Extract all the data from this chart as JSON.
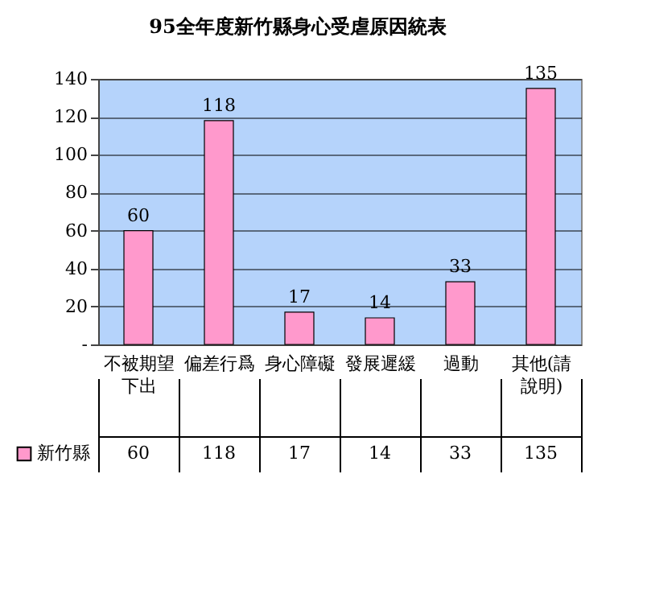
{
  "chart_data": {
    "type": "bar",
    "title": "95全年度新竹縣身心受虐原因統表",
    "categories": [
      "不被期望下出",
      "偏差行爲",
      "身心障礙",
      "發展遲緩",
      "過動",
      "其他(請說明)"
    ],
    "series": [
      {
        "name": "新竹縣",
        "color": "#ff99cc",
        "values": [
          60,
          118,
          17,
          14,
          33,
          135
        ],
        "value_labels": [
          "60",
          "118",
          "17",
          "14",
          "33",
          "135"
        ]
      }
    ],
    "ylim": [
      0,
      140
    ],
    "yticks": [
      {
        "value": 0,
        "label": "-"
      },
      20,
      40,
      60,
      80,
      100,
      120,
      140
    ],
    "grid": "y",
    "data_labels": true,
    "legend": "bottom left"
  }
}
